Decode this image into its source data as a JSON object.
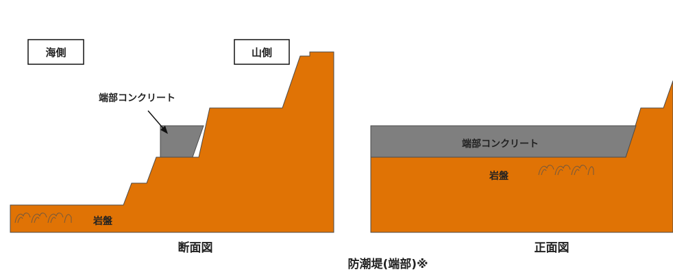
{
  "section_view": {
    "label_sea_side": "海側",
    "label_mountain_side": "山側",
    "label_concrete": "端部コンクリート",
    "label_bedrock": "岩盤",
    "caption": "断面図"
  },
  "front_view": {
    "label_concrete": "端部コンクリート",
    "label_bedrock": "岩盤",
    "caption": "正面図"
  },
  "main_title": "防潮堤(端部)※",
  "colors": {
    "bedrock": "#E07305",
    "concrete": "#7F7F7F",
    "outline": "#4A4A4A",
    "grass": "#7A5A3A"
  }
}
